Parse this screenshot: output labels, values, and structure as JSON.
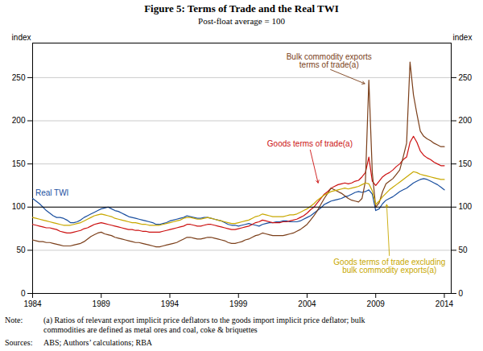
{
  "chart_data": {
    "type": "line",
    "title": "Figure 5: Terms of Trade and the Real TWI",
    "subtitle": "Post-float average = 100",
    "ylabel": "index",
    "y2label": "index",
    "xlim": [
      1984,
      2014.5
    ],
    "xticks": [
      1984,
      1989,
      1994,
      1999,
      2004,
      2009,
      2014
    ],
    "ylim": [
      0,
      290
    ],
    "yticks": [
      0,
      50,
      100,
      150,
      200,
      250
    ],
    "y2lim": [
      0,
      290
    ],
    "y2ticks": [
      0,
      50,
      100,
      150,
      200,
      250
    ],
    "grid": true,
    "hline": 100,
    "x": [
      1984.0,
      1984.25,
      1984.5,
      1984.75,
      1985.0,
      1985.25,
      1985.5,
      1985.75,
      1986.0,
      1986.25,
      1986.5,
      1986.75,
      1987.0,
      1987.25,
      1987.5,
      1987.75,
      1988.0,
      1988.25,
      1988.5,
      1988.75,
      1989.0,
      1989.25,
      1989.5,
      1989.75,
      1990.0,
      1990.25,
      1990.5,
      1990.75,
      1991.0,
      1991.25,
      1991.5,
      1991.75,
      1992.0,
      1992.25,
      1992.5,
      1992.75,
      1993.0,
      1993.25,
      1993.5,
      1993.75,
      1994.0,
      1994.25,
      1994.5,
      1994.75,
      1995.0,
      1995.25,
      1995.5,
      1995.75,
      1996.0,
      1996.25,
      1996.5,
      1996.75,
      1997.0,
      1997.25,
      1997.5,
      1997.75,
      1998.0,
      1998.25,
      1998.5,
      1998.75,
      1999.0,
      1999.25,
      1999.5,
      1999.75,
      2000.0,
      2000.25,
      2000.5,
      2000.75,
      2001.0,
      2001.25,
      2001.5,
      2001.75,
      2002.0,
      2002.25,
      2002.5,
      2002.75,
      2003.0,
      2003.25,
      2003.5,
      2003.75,
      2004.0,
      2004.25,
      2004.5,
      2004.75,
      2005.0,
      2005.25,
      2005.5,
      2005.75,
      2006.0,
      2006.25,
      2006.5,
      2006.75,
      2007.0,
      2007.25,
      2007.5,
      2007.75,
      2008.0,
      2008.25,
      2008.5,
      2008.75,
      2009.0,
      2009.25,
      2009.5,
      2009.75,
      2010.0,
      2010.25,
      2010.5,
      2010.75,
      2011.0,
      2011.25,
      2011.5,
      2011.75,
      2012.0,
      2012.25,
      2012.5,
      2012.75,
      2013.0,
      2013.25,
      2013.5,
      2013.75,
      2014.0
    ],
    "series": [
      {
        "color": "#1a4f9f",
        "values": [
          110,
          107,
          104,
          100,
          96,
          93,
          90,
          88,
          88,
          87,
          85,
          82,
          82,
          83,
          85,
          88,
          90,
          92,
          94,
          96,
          98,
          99,
          100,
          98,
          96,
          95,
          93,
          91,
          89,
          88,
          87,
          86,
          85,
          84,
          83,
          82,
          80,
          80,
          81,
          82,
          84,
          85,
          86,
          87,
          88,
          90,
          89,
          88,
          87,
          87,
          88,
          88,
          87,
          86,
          85,
          84,
          82,
          80,
          79,
          79,
          78,
          79,
          80,
          81,
          80,
          79,
          78,
          80,
          81,
          82,
          82,
          83,
          83,
          84,
          84,
          83,
          83,
          83,
          84,
          86,
          88,
          90,
          93,
          96,
          99,
          103,
          105,
          107,
          108,
          109,
          110,
          112,
          113,
          115,
          117,
          118,
          117,
          118,
          120,
          115,
          96,
          98,
          104,
          108,
          110,
          112,
          115,
          118,
          120,
          122,
          125,
          128,
          130,
          132,
          133,
          132,
          130,
          128,
          126,
          123,
          120
        ]
      },
      {
        "color": "#cc1111",
        "values": [
          80,
          79,
          78,
          77,
          76,
          76,
          75,
          74,
          72,
          71,
          70,
          70,
          71,
          72,
          73,
          75,
          76,
          78,
          80,
          81,
          82,
          81,
          80,
          79,
          78,
          77,
          76,
          75,
          74,
          74,
          73,
          73,
          72,
          72,
          71,
          71,
          71,
          71,
          72,
          73,
          74,
          75,
          76,
          77,
          78,
          80,
          80,
          79,
          78,
          78,
          79,
          80,
          80,
          79,
          78,
          77,
          76,
          75,
          74,
          74,
          75,
          76,
          77,
          78,
          80,
          82,
          83,
          85,
          84,
          83,
          82,
          82,
          82,
          83,
          83,
          84,
          85,
          86,
          88,
          90,
          93,
          97,
          100,
          105,
          110,
          115,
          118,
          122,
          124,
          126,
          127,
          128,
          127,
          128,
          130,
          131,
          135,
          140,
          158,
          130,
          125,
          130,
          135,
          138,
          140,
          143,
          147,
          150,
          155,
          158,
          175,
          182,
          175,
          165,
          160,
          157,
          155,
          152,
          150,
          148,
          148
        ]
      },
      {
        "color": "#7b3f1a",
        "values": [
          62,
          61,
          60,
          60,
          59,
          59,
          58,
          57,
          56,
          55,
          55,
          55,
          56,
          57,
          58,
          60,
          63,
          66,
          68,
          70,
          71,
          69,
          68,
          67,
          65,
          64,
          63,
          62,
          61,
          60,
          59,
          59,
          58,
          57,
          56,
          55,
          54,
          54,
          55,
          56,
          57,
          58,
          59,
          61,
          63,
          65,
          65,
          64,
          63,
          63,
          64,
          65,
          65,
          64,
          63,
          62,
          61,
          59,
          58,
          58,
          59,
          60,
          62,
          63,
          65,
          67,
          68,
          70,
          69,
          68,
          67,
          67,
          67,
          67,
          68,
          69,
          70,
          72,
          74,
          77,
          80,
          85,
          90,
          96,
          103,
          110,
          116,
          122,
          120,
          118,
          116,
          113,
          110,
          108,
          107,
          106,
          110,
          130,
          247,
          140,
          100,
          105,
          118,
          127,
          130,
          133,
          138,
          143,
          158,
          174,
          268,
          230,
          208,
          188,
          182,
          179,
          177,
          174,
          172,
          170,
          170
        ]
      },
      {
        "color": "#c8a800",
        "values": [
          88,
          87,
          86,
          85,
          84,
          83,
          82,
          81,
          80,
          79,
          79,
          79,
          80,
          81,
          82,
          84,
          86,
          88,
          90,
          91,
          92,
          91,
          90,
          89,
          87,
          86,
          85,
          84,
          83,
          82,
          82,
          81,
          80,
          80,
          79,
          79,
          79,
          79,
          80,
          81,
          82,
          83,
          84,
          85,
          87,
          88,
          88,
          87,
          86,
          86,
          87,
          88,
          87,
          86,
          85,
          84,
          83,
          82,
          81,
          81,
          82,
          83,
          84,
          85,
          87,
          89,
          90,
          92,
          91,
          90,
          89,
          89,
          89,
          89,
          90,
          91,
          91,
          92,
          94,
          96,
          98,
          101,
          104,
          108,
          111,
          114,
          116,
          118,
          119,
          120,
          121,
          122,
          121,
          122,
          123,
          124,
          126,
          128,
          127,
          119,
          103,
          107,
          112,
          116,
          120,
          123,
          126,
          129,
          132,
          135,
          138,
          141,
          140,
          138,
          137,
          136,
          135,
          134,
          133,
          132,
          132
        ]
      }
    ],
    "annotations": [
      {
        "text": "Bulk commodity exports\nterms of trade(a)",
        "x": 2005.6,
        "y": 260,
        "arrow_x": 2008.2,
        "arrow_y": 243,
        "color": "#7b3f1a"
      },
      {
        "text": "Goods terms of trade(a)",
        "x": 2004.2,
        "y": 168,
        "arrow_x": 2004.8,
        "arrow_y": 128,
        "color": "#cc1111"
      },
      {
        "text": "Real TWI",
        "x": 1984.2,
        "y": 113,
        "color": "#1a4f9f"
      },
      {
        "text": "Goods terms of trade excluding\nbulk commodity exports(a)",
        "x": 2010.0,
        "y": 42,
        "arrow_x": 2009.8,
        "arrow_y": 103,
        "color": "#c8a800"
      }
    ],
    "notes": [
      {
        "label": "Note:",
        "text": "(a) Ratios of relevant export implicit price deflators to the goods import implicit price deflator; bulk\ncommodities are defined as metal ores and coal, coke & briquettes"
      },
      {
        "label": "Sources:",
        "text": "ABS; Authors’ calculations; RBA"
      }
    ]
  }
}
